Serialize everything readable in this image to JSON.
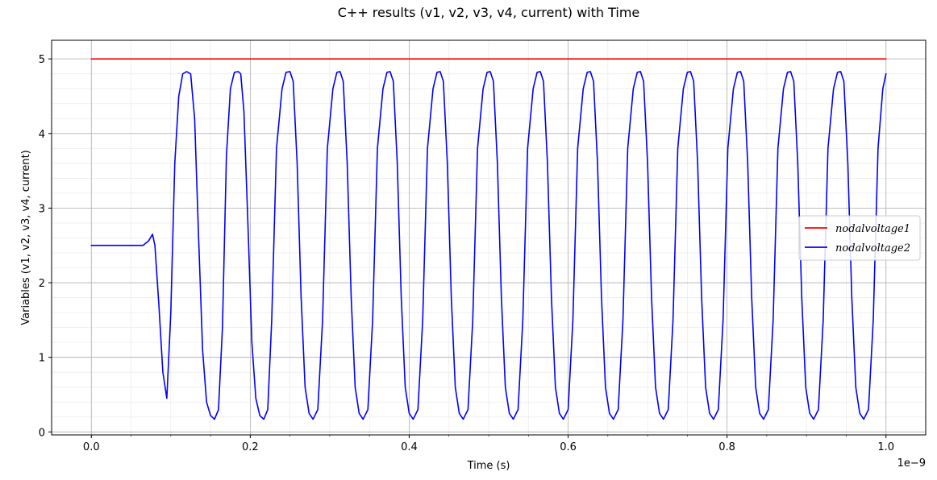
{
  "chart_data": {
    "type": "line",
    "title": "C++ results (v1, v2, v3, v4, current) with Time",
    "xlabel": "Time (s)",
    "ylabel": "Variables (v1, v2, v3, v4, current)",
    "x_offset_label": "1e−9",
    "xlim": [
      -0.05,
      1.05
    ],
    "ylim": [
      -0.04,
      5.25
    ],
    "x_ticks": [
      0.0,
      0.2,
      0.4,
      0.6,
      0.8,
      1.0
    ],
    "x_tick_labels": [
      "0.0",
      "0.2",
      "0.4",
      "0.6",
      "0.8",
      "1.0"
    ],
    "y_ticks": [
      0,
      1,
      2,
      3,
      4,
      5
    ],
    "y_tick_labels": [
      "0",
      "1",
      "2",
      "3",
      "4",
      "5"
    ],
    "grid": true,
    "minor_grid": true,
    "legend_position": "center-right",
    "series": [
      {
        "name": "nodalvoltage1",
        "color": "#ff0000",
        "x": [
          0.0,
          1.0
        ],
        "y": [
          5.0,
          5.0
        ]
      },
      {
        "name": "nodalvoltage2",
        "color": "#0000ff",
        "x": [
          0.0,
          0.065,
          0.072,
          0.077,
          0.08,
          0.085,
          0.09,
          0.095,
          0.1,
          0.105,
          0.11,
          0.115,
          0.12,
          0.125,
          0.13,
          0.135,
          0.14,
          0.145,
          0.15,
          0.155,
          0.16,
          0.165,
          0.17,
          0.175,
          0.18,
          0.185,
          0.188,
          0.192,
          0.197,
          0.202,
          0.207,
          0.212,
          0.217,
          0.222,
          0.227,
          0.233,
          0.24,
          0.245,
          0.25,
          0.254,
          0.259,
          0.264,
          0.269,
          0.274,
          0.279,
          0.285,
          0.291,
          0.297,
          0.304,
          0.309,
          0.313,
          0.317,
          0.322,
          0.327,
          0.332,
          0.337,
          0.342,
          0.348,
          0.354,
          0.36,
          0.367,
          0.372,
          0.376,
          0.38,
          0.385,
          0.39,
          0.395,
          0.4,
          0.405,
          0.411,
          0.417,
          0.423,
          0.43,
          0.435,
          0.439,
          0.443,
          0.448,
          0.453,
          0.458,
          0.463,
          0.468,
          0.474,
          0.48,
          0.486,
          0.493,
          0.498,
          0.502,
          0.506,
          0.511,
          0.516,
          0.521,
          0.526,
          0.531,
          0.537,
          0.543,
          0.549,
          0.556,
          0.561,
          0.565,
          0.569,
          0.574,
          0.579,
          0.584,
          0.589,
          0.594,
          0.6,
          0.606,
          0.612,
          0.619,
          0.624,
          0.628,
          0.632,
          0.637,
          0.642,
          0.647,
          0.652,
          0.657,
          0.663,
          0.669,
          0.675,
          0.682,
          0.687,
          0.691,
          0.695,
          0.7,
          0.705,
          0.71,
          0.715,
          0.72,
          0.726,
          0.732,
          0.738,
          0.745,
          0.75,
          0.754,
          0.758,
          0.763,
          0.768,
          0.773,
          0.778,
          0.783,
          0.789,
          0.795,
          0.801,
          0.808,
          0.813,
          0.817,
          0.821,
          0.826,
          0.831,
          0.836,
          0.841,
          0.846,
          0.852,
          0.858,
          0.864,
          0.871,
          0.876,
          0.88,
          0.884,
          0.889,
          0.894,
          0.899,
          0.904,
          0.909,
          0.915,
          0.921,
          0.927,
          0.934,
          0.939,
          0.943,
          0.947,
          0.952,
          0.957,
          0.962,
          0.967,
          0.972,
          0.978,
          0.984,
          0.99,
          0.996,
          1.0
        ],
        "y": [
          2.5,
          2.5,
          2.56,
          2.65,
          2.5,
          1.7,
          0.8,
          0.45,
          1.6,
          3.6,
          4.5,
          4.8,
          4.83,
          4.8,
          4.2,
          2.6,
          1.1,
          0.4,
          0.22,
          0.17,
          0.3,
          1.4,
          3.7,
          4.6,
          4.82,
          4.83,
          4.8,
          4.3,
          2.8,
          1.2,
          0.45,
          0.22,
          0.17,
          0.3,
          1.5,
          3.8,
          4.6,
          4.82,
          4.83,
          4.7,
          3.6,
          1.8,
          0.6,
          0.25,
          0.17,
          0.3,
          1.5,
          3.8,
          4.6,
          4.82,
          4.83,
          4.7,
          3.6,
          1.8,
          0.6,
          0.25,
          0.17,
          0.3,
          1.5,
          3.8,
          4.6,
          4.82,
          4.83,
          4.7,
          3.6,
          1.8,
          0.6,
          0.25,
          0.17,
          0.3,
          1.5,
          3.8,
          4.6,
          4.82,
          4.83,
          4.7,
          3.6,
          1.8,
          0.6,
          0.25,
          0.17,
          0.3,
          1.5,
          3.8,
          4.6,
          4.82,
          4.83,
          4.7,
          3.6,
          1.8,
          0.6,
          0.25,
          0.17,
          0.3,
          1.5,
          3.8,
          4.6,
          4.82,
          4.83,
          4.7,
          3.6,
          1.8,
          0.6,
          0.25,
          0.17,
          0.3,
          1.5,
          3.8,
          4.6,
          4.82,
          4.83,
          4.7,
          3.6,
          1.8,
          0.6,
          0.25,
          0.17,
          0.3,
          1.5,
          3.8,
          4.6,
          4.82,
          4.83,
          4.7,
          3.6,
          1.8,
          0.6,
          0.25,
          0.17,
          0.3,
          1.5,
          3.8,
          4.6,
          4.82,
          4.83,
          4.7,
          3.6,
          1.8,
          0.6,
          0.25,
          0.17,
          0.3,
          1.5,
          3.8,
          4.6,
          4.82,
          4.83,
          4.7,
          3.6,
          1.8,
          0.6,
          0.25,
          0.17,
          0.3,
          1.5,
          3.8,
          4.6,
          4.82,
          4.83,
          4.7,
          3.6,
          1.8,
          0.6,
          0.25,
          0.17,
          0.3,
          1.5,
          3.8,
          4.6,
          4.82,
          4.83,
          4.7,
          3.6,
          1.8,
          0.6,
          0.25,
          0.17,
          0.3,
          1.5,
          3.8,
          4.6,
          4.8
        ]
      }
    ]
  }
}
